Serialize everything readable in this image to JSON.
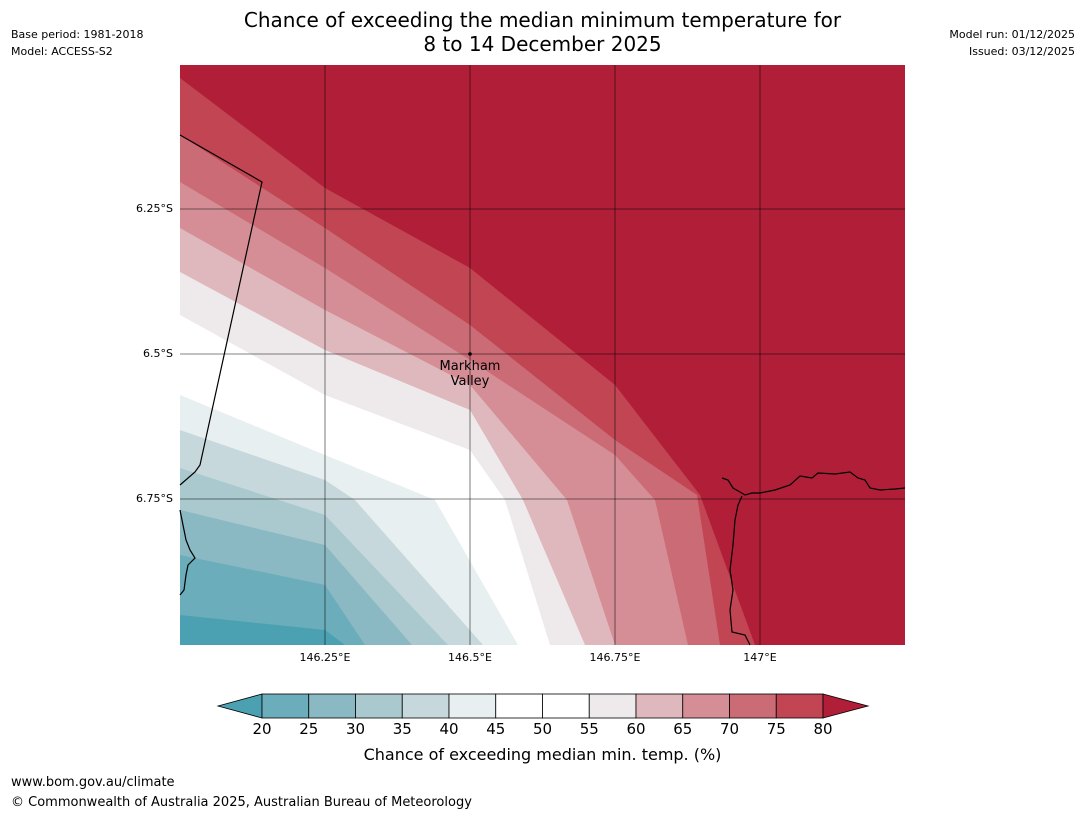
{
  "title": {
    "line1": "Chance of exceeding the median minimum temperature for",
    "line2": "8 to 14 December 2025"
  },
  "meta_left": {
    "base_period": "Base period: 1981-2018",
    "model": "Model: ACCESS-S2"
  },
  "meta_right": {
    "model_run": "Model run: 01/12/2025",
    "issued": "Issued: 03/12/2025"
  },
  "map": {
    "lat_labels": [
      "6.25°S",
      "6.5°S",
      "6.75°S"
    ],
    "lon_labels": [
      "146.25°E",
      "146.5°E",
      "146.75°E",
      "147°E"
    ],
    "place": {
      "line1": "Markham",
      "line2": "Valley"
    }
  },
  "colorbar": {
    "ticks": [
      "20",
      "25",
      "30",
      "35",
      "40",
      "45",
      "50",
      "55",
      "60",
      "65",
      "70",
      "75",
      "80"
    ],
    "label": "Chance of exceeding median min. temp. (%)",
    "colors": [
      "#4ba1b1",
      "#6badba",
      "#8ab9c3",
      "#a9c9cf",
      "#c6d8dc",
      "#e8eff1",
      "#ffffff",
      "#ffffff",
      "#eeeaeb",
      "#dfb8bd",
      "#d58e96",
      "#cb6b75",
      "#c14553",
      "#b01f37"
    ]
  },
  "footer": {
    "url": "www.bom.gov.au/climate",
    "copyright": "© Commonwealth of Australia 2025, Australian Bureau of Meteorology"
  }
}
